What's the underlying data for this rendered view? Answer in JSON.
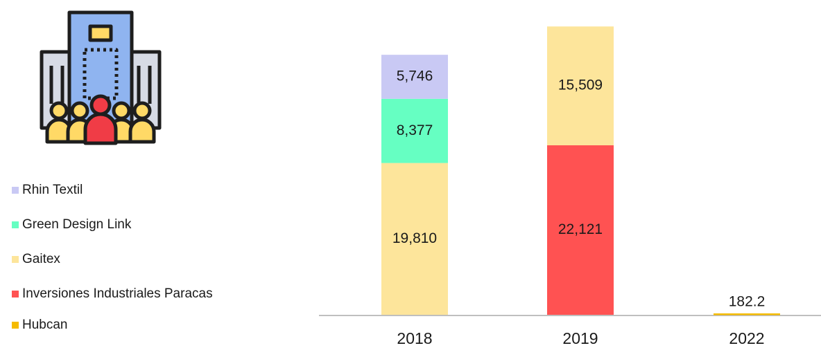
{
  "chart_data": {
    "type": "stacked_bar",
    "categories": [
      "2018",
      "2019",
      "2022"
    ],
    "series": [
      {
        "name": "Rhin Textil",
        "color": "#c9c9f4",
        "values": [
          5746,
          null,
          null
        ],
        "value_labels": [
          "5,746",
          null,
          null
        ]
      },
      {
        "name": "Green Design Link",
        "color": "#66ffc2",
        "values": [
          8377,
          null,
          null
        ],
        "value_labels": [
          "8,377",
          null,
          null
        ]
      },
      {
        "name": "Gaitex",
        "color": "#fde59b",
        "values": [
          19810,
          15509,
          null
        ],
        "value_labels": [
          "19,810",
          "15,509",
          null
        ]
      },
      {
        "name": "Inversiones Industriales Paracas",
        "color": "#ff5252",
        "values": [
          null,
          22121,
          null
        ],
        "value_labels": [
          null,
          "22,121",
          null
        ]
      },
      {
        "name": "Hubcan",
        "color": "#f5bb00",
        "values": [
          null,
          null,
          182.2
        ]
      }
    ],
    "ylim": [
      0,
      40000
    ]
  }
}
